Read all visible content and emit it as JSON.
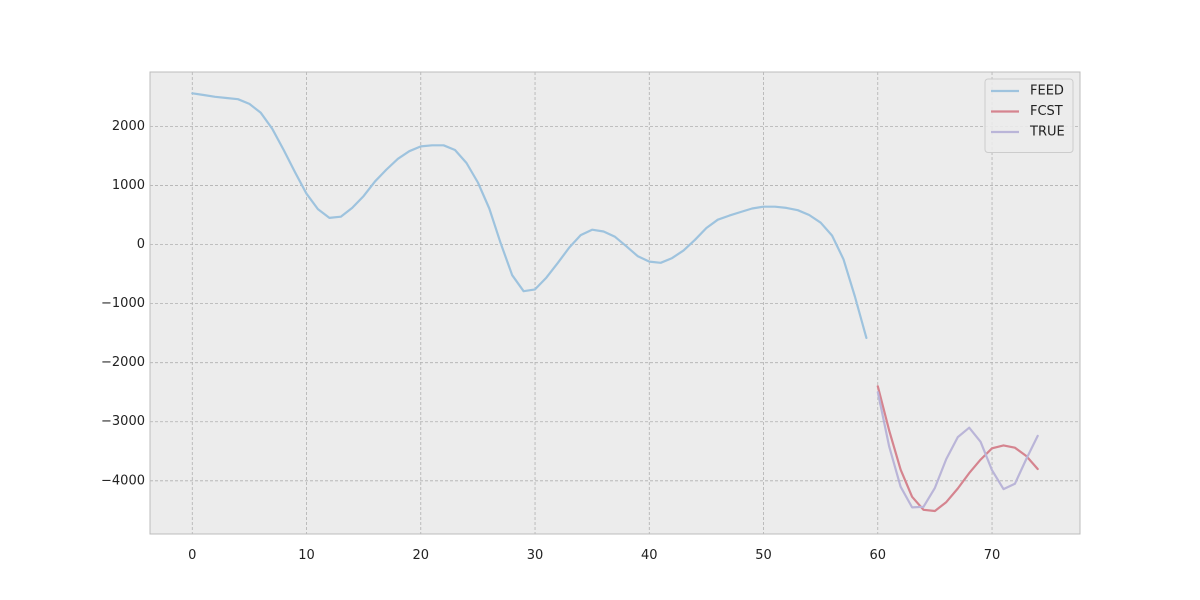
{
  "chart_data": {
    "type": "line",
    "title": "",
    "xlabel": "",
    "ylabel": "",
    "xlim": [
      -3.7,
      77.7
    ],
    "ylim": [
      -4900,
      2920
    ],
    "xticks": [
      0,
      10,
      20,
      30,
      40,
      50,
      60,
      70
    ],
    "yticks": [
      -4000,
      -3000,
      -2000,
      -1000,
      0,
      1000,
      2000
    ],
    "grid": true,
    "legend_position": "top-right",
    "colors": {
      "background": "#ececec",
      "grid": "#b0b0b0",
      "spine": "#bcbcbc"
    },
    "series": [
      {
        "name": "FEED",
        "color": "#9ec3de",
        "x": [
          0,
          1,
          2,
          3,
          4,
          5,
          6,
          7,
          8,
          9,
          10,
          11,
          12,
          13,
          14,
          15,
          16,
          17,
          18,
          19,
          20,
          21,
          22,
          23,
          24,
          25,
          26,
          27,
          28,
          29,
          30,
          31,
          32,
          33,
          34,
          35,
          36,
          37,
          38,
          39,
          40,
          41,
          42,
          43,
          44,
          45,
          46,
          47,
          48,
          49,
          50,
          51,
          52,
          53,
          54,
          55,
          56,
          57,
          58,
          59
        ],
        "y": [
          2560,
          2530,
          2500,
          2480,
          2460,
          2380,
          2230,
          1960,
          1600,
          1220,
          860,
          600,
          450,
          470,
          620,
          820,
          1070,
          1270,
          1450,
          1580,
          1660,
          1680,
          1680,
          1600,
          1380,
          1050,
          610,
          20,
          -520,
          -790,
          -760,
          -560,
          -310,
          -50,
          160,
          250,
          220,
          130,
          -30,
          -200,
          -290,
          -310,
          -230,
          -100,
          80,
          280,
          420,
          490,
          550,
          610,
          640,
          640,
          620,
          580,
          500,
          370,
          150,
          -250,
          -880,
          -1580
        ]
      },
      {
        "name": "FCST",
        "color": "#d5848f",
        "x": [
          60,
          61,
          62,
          63,
          64,
          65,
          66,
          67,
          68,
          69,
          70,
          71,
          72,
          73,
          74
        ],
        "y": [
          -2400,
          -3150,
          -3810,
          -4270,
          -4490,
          -4510,
          -4360,
          -4130,
          -3870,
          -3640,
          -3450,
          -3400,
          -3440,
          -3580,
          -3800
        ]
      },
      {
        "name": "TRUE",
        "color": "#bab5d8",
        "x": [
          60,
          61,
          62,
          63,
          64,
          65,
          66,
          67,
          68,
          69,
          70,
          71,
          72,
          73,
          74
        ],
        "y": [
          -2500,
          -3420,
          -4100,
          -4450,
          -4440,
          -4120,
          -3630,
          -3260,
          -3100,
          -3340,
          -3820,
          -4140,
          -4050,
          -3630,
          -3240
        ]
      }
    ]
  }
}
